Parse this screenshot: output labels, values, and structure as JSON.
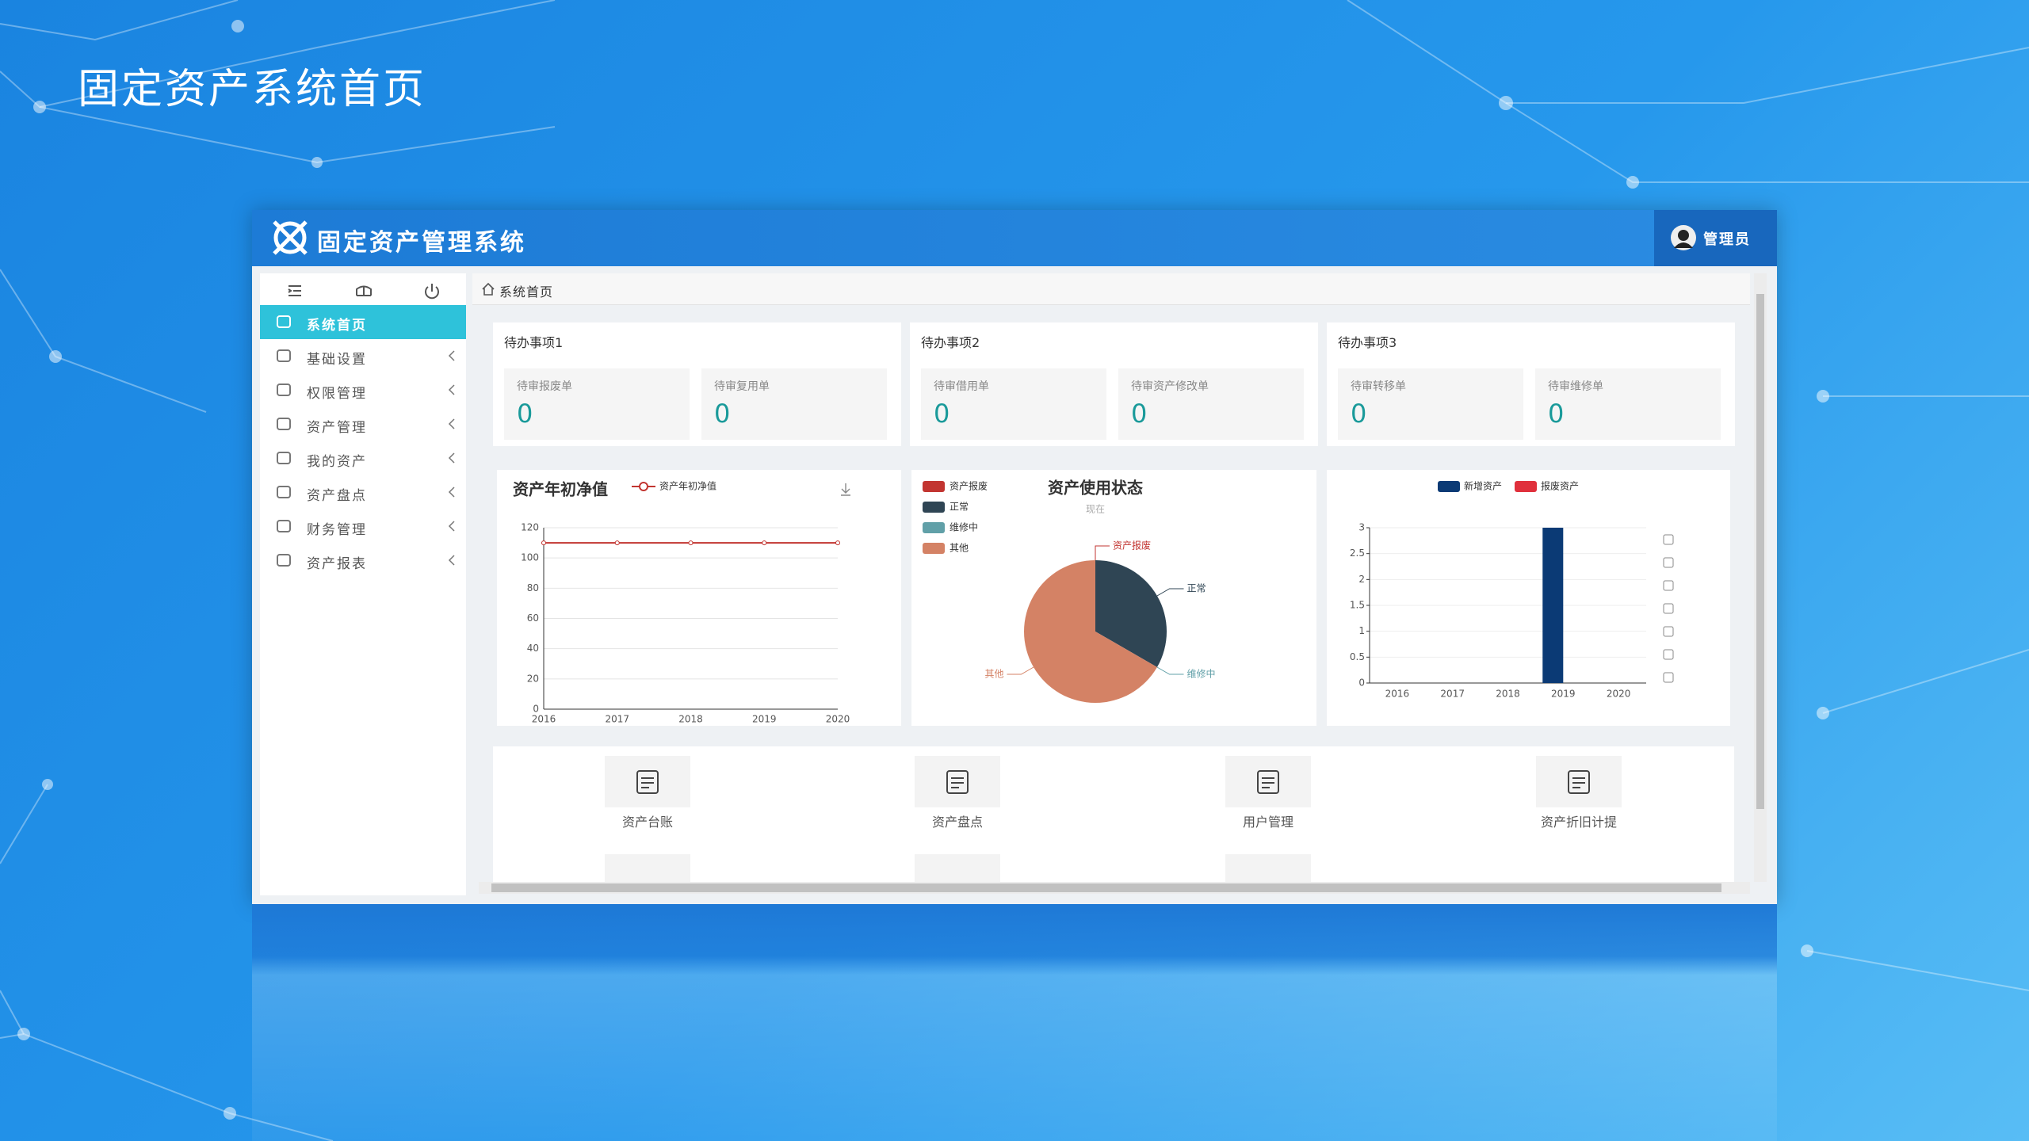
{
  "slide_title": "固定资产系统首页",
  "app": {
    "title": "固定资产管理系统",
    "user": "管理员"
  },
  "sidebar": {
    "items": [
      "系统首页",
      "基础设置",
      "权限管理",
      "资产管理",
      "我的资产",
      "资产盘点",
      "财务管理",
      "资产报表"
    ]
  },
  "breadcrumb": "系统首页",
  "todos": [
    {
      "title": "待办事项1",
      "items": [
        {
          "label": "待审报废单",
          "count": 0
        },
        {
          "label": "待审复用单",
          "count": 0
        }
      ]
    },
    {
      "title": "待办事项2",
      "items": [
        {
          "label": "待审借用单",
          "count": 0
        },
        {
          "label": "待审资产修改单",
          "count": 0
        }
      ]
    },
    {
      "title": "待办事项3",
      "items": [
        {
          "label": "待审转移单",
          "count": 0
        },
        {
          "label": "待审维修单",
          "count": 0
        }
      ]
    }
  ],
  "chart_data": [
    {
      "type": "line",
      "title": "资产年初净值",
      "categories": [
        "2016",
        "2017",
        "2018",
        "2019",
        "2020"
      ],
      "series": [
        {
          "name": "资产年初净值",
          "color": "#c23531",
          "values": [
            110,
            110,
            110,
            110,
            110
          ]
        }
      ],
      "ylim": [
        0,
        120
      ],
      "yticks": [
        0,
        20,
        40,
        60,
        80,
        100,
        120
      ],
      "grid": true
    },
    {
      "type": "pie",
      "title": "资产使用状态",
      "subtitle": "现在",
      "categories": [
        "资产报废",
        "正常",
        "维修中",
        "其他"
      ],
      "values": [
        0,
        1,
        0,
        2
      ],
      "colors": [
        "#c23531",
        "#2f4554",
        "#61a0a8",
        "#d48265"
      ]
    },
    {
      "type": "bar",
      "categories": [
        "2016",
        "2017",
        "2018",
        "2019",
        "2020"
      ],
      "series": [
        {
          "name": "新增资产",
          "color": "#0b3a75",
          "values": [
            0,
            0,
            0,
            3,
            0
          ]
        },
        {
          "name": "报废资产",
          "color": "#e0303c",
          "values": [
            0,
            0,
            0,
            0,
            0
          ]
        }
      ],
      "ylim": [
        0,
        3
      ],
      "yticks": [
        0,
        0.5,
        1,
        1.5,
        2,
        2.5,
        3
      ],
      "grid": true
    }
  ],
  "shortcuts": [
    "资产台账",
    "资产盘点",
    "用户管理",
    "资产折旧计提"
  ]
}
